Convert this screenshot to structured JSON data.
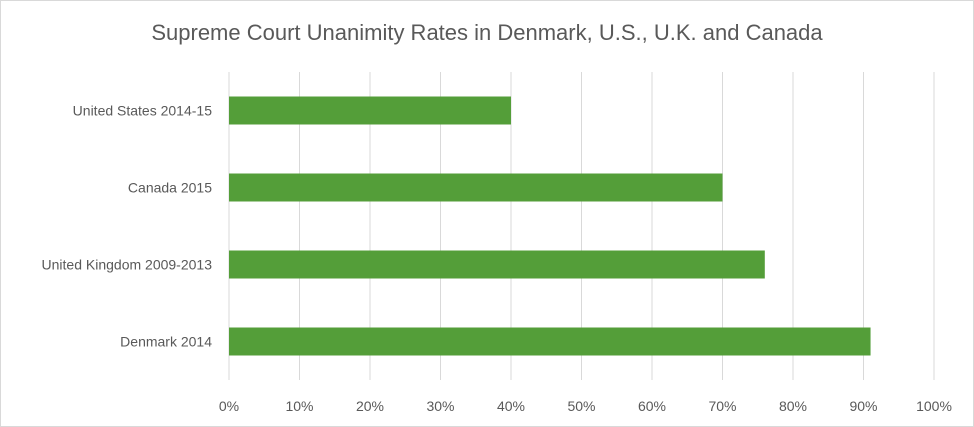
{
  "chart_data": {
    "type": "bar",
    "orientation": "horizontal",
    "title": "Supreme Court Unanimity Rates in Denmark, U.S., U.K. and Canada",
    "categories": [
      "United States 2014-15",
      "Canada 2015",
      "United Kingdom 2009-2013",
      "Denmark 2014"
    ],
    "values": [
      40,
      70,
      76,
      91
    ],
    "xlim": [
      0,
      100
    ],
    "xticks": [
      "0%",
      "10%",
      "20%",
      "30%",
      "40%",
      "50%",
      "60%",
      "70%",
      "80%",
      "90%",
      "100%"
    ],
    "grid": true,
    "legend": "none",
    "bar_color": "#549e39",
    "grid_color": "#d9d9d9"
  }
}
